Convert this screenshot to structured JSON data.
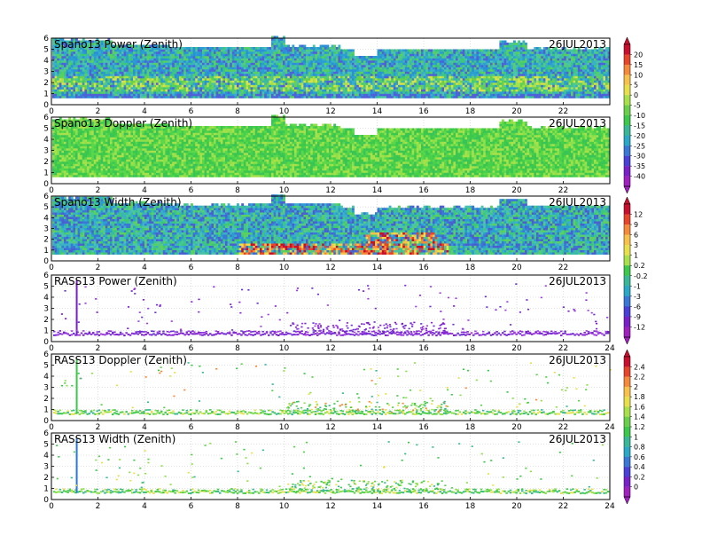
{
  "chart_data": [
    {
      "type": "heatmap",
      "title": "Spano13 Power (Zenith)",
      "date": "26JUL2013",
      "xlim": [
        0,
        24
      ],
      "ylim": [
        0,
        6
      ],
      "x_ticks": [
        "0",
        "2",
        "4",
        "6",
        "8",
        "10",
        "12",
        "14",
        "16",
        "18",
        "20",
        "22"
      ],
      "y_ticks": [
        "0",
        "1",
        "2",
        "3",
        "4",
        "5",
        "6"
      ],
      "colorbar": "power"
    },
    {
      "type": "heatmap",
      "title": "Spano13 Doppler (Zenith)",
      "date": "26JUL2013",
      "xlim": [
        0,
        24
      ],
      "ylim": [
        0,
        6
      ],
      "x_ticks": [
        "0",
        "2",
        "4",
        "6",
        "8",
        "10",
        "12",
        "14",
        "16",
        "18",
        "20",
        "22"
      ],
      "y_ticks": [
        "0",
        "1",
        "2",
        "3",
        "4",
        "5",
        "6"
      ],
      "colorbar": null
    },
    {
      "type": "heatmap",
      "title": "Spano13 Width (Zenith)",
      "date": "26JUL2013",
      "xlim": [
        0,
        24
      ],
      "ylim": [
        0,
        6
      ],
      "x_ticks": [
        "0",
        "2",
        "4",
        "6",
        "8",
        "10",
        "12",
        "14",
        "16",
        "18",
        "20",
        "22"
      ],
      "y_ticks": [
        "0",
        "1",
        "2",
        "3",
        "4",
        "5",
        "6"
      ],
      "colorbar": "width"
    },
    {
      "type": "scatter",
      "title": "RASS13 Power (Zenith)",
      "date": "26JUL2013",
      "xlim": [
        0,
        24
      ],
      "ylim": [
        0,
        6
      ],
      "x_ticks": [
        "0",
        "2",
        "4",
        "6",
        "8",
        "10",
        "12",
        "14",
        "16",
        "18",
        "20",
        "22",
        "24"
      ],
      "y_ticks": [
        "0",
        "1",
        "2",
        "3",
        "4",
        "5",
        "6"
      ],
      "colorbar": null
    },
    {
      "type": "scatter",
      "title": "RASS13 Doppler (Zenith)",
      "date": "26JUL2013",
      "xlim": [
        0,
        24
      ],
      "ylim": [
        0,
        6
      ],
      "x_ticks": [
        "0",
        "2",
        "4",
        "6",
        "8",
        "10",
        "12",
        "14",
        "16",
        "18",
        "20",
        "22",
        "24"
      ],
      "y_ticks": [
        "0",
        "1",
        "2",
        "3",
        "4",
        "5",
        "6"
      ],
      "colorbar": "rass"
    },
    {
      "type": "scatter",
      "title": "RASS13 Width (Zenith)",
      "date": "26JUL2013",
      "xlim": [
        0,
        24
      ],
      "ylim": [
        0,
        6
      ],
      "x_ticks": [
        "0",
        "2",
        "4",
        "6",
        "8",
        "10",
        "12",
        "14",
        "16",
        "18",
        "20",
        "22",
        "24"
      ],
      "y_ticks": [
        "0",
        "1",
        "2",
        "3",
        "4",
        "5",
        "6"
      ],
      "colorbar": null
    }
  ],
  "colorbars": {
    "power": {
      "labels": [
        "20",
        "15",
        "10",
        "5",
        "0",
        "-5",
        "-10",
        "-15",
        "-20",
        "-25",
        "-30",
        "-35",
        "-40"
      ],
      "colors": [
        "#c8102e",
        "#e8442a",
        "#f6893a",
        "#f8c24a",
        "#e8e04a",
        "#a8e04a",
        "#6ad04a",
        "#3cc84a",
        "#38b898",
        "#2aa8c8",
        "#3a78d8",
        "#4a40d8",
        "#7a20c8",
        "#a020c0"
      ]
    },
    "width": {
      "labels": [
        "12",
        "9",
        "6",
        "3",
        "1",
        "0.2",
        "-0.2",
        "-1",
        "-3",
        "-6",
        "-9",
        "-12"
      ],
      "colors": [
        "#c8102e",
        "#e8442a",
        "#f6893a",
        "#f8c24a",
        "#e8e04a",
        "#a8e04a",
        "#3cc84a",
        "#38b898",
        "#2aa8c8",
        "#3a78d8",
        "#4a40d8",
        "#7a20c8",
        "#a020c0"
      ]
    },
    "rass": {
      "labels": [
        "2.4",
        "2.2",
        "2",
        "1.8",
        "1.6",
        "1.4",
        "1.2",
        "1",
        "0.8",
        "0.6",
        "0.4",
        "0.2",
        "0"
      ],
      "colors": [
        "#c8102e",
        "#e8442a",
        "#f6893a",
        "#f8c24a",
        "#e8e04a",
        "#a8e04a",
        "#6ad04a",
        "#3cc84a",
        "#38b898",
        "#2aa8c8",
        "#3a78d8",
        "#4a40d8",
        "#7a20c8",
        "#a020c0"
      ]
    }
  }
}
